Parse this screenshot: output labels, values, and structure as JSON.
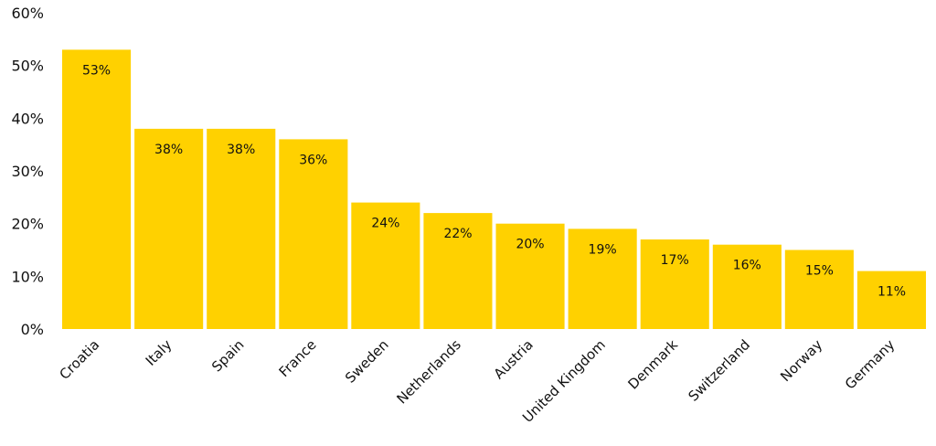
{
  "chart_data": {
    "type": "bar",
    "title": "",
    "xlabel": "",
    "ylabel": "",
    "categories": [
      "Croatia",
      "Italy",
      "Spain",
      "France",
      "Sweden",
      "Netherlands",
      "Austria",
      "United Kingdom",
      "Denmark",
      "Switzerland",
      "Norway",
      "Germany"
    ],
    "values": [
      53,
      38,
      38,
      36,
      24,
      22,
      20,
      19,
      17,
      16,
      15,
      11
    ],
    "value_labels": [
      "53%",
      "38%",
      "38%",
      "36%",
      "24%",
      "22%",
      "20%",
      "19%",
      "17%",
      "16%",
      "15%",
      "11%"
    ],
    "ylim": [
      0,
      60
    ],
    "yticks": [
      0,
      10,
      20,
      30,
      40,
      50,
      60
    ],
    "ytick_labels": [
      "0%",
      "10%",
      "20%",
      "30%",
      "40%",
      "50%",
      "60%"
    ],
    "grid": false,
    "legend": "none",
    "bar_color": "#FFD100"
  }
}
